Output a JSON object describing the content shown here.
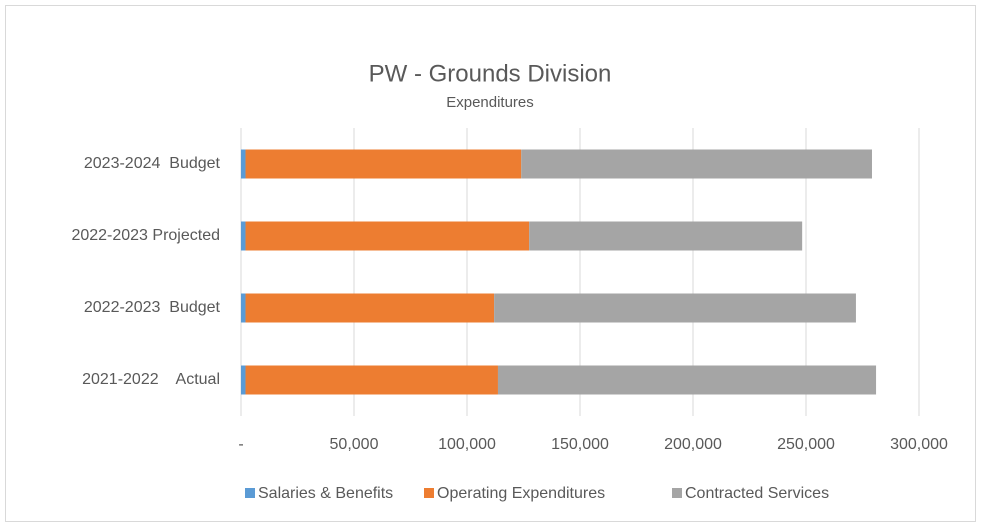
{
  "chart_data": {
    "type": "stacked_barh",
    "title": "PW - Grounds Division",
    "subtitle": "Expenditures",
    "categories": [
      "2021-2022    Actual",
      "2022-2023  Budget",
      "2022-2023 Projected",
      "2023-2024  Budget"
    ],
    "series": [
      {
        "name": "Salaries & Benefits",
        "color": "#5b9bd5",
        "values": [
          2000,
          2000,
          2000,
          2000
        ]
      },
      {
        "name": "Operating Expenditures",
        "color": "#ed7d31",
        "values": [
          111700,
          110000,
          125500,
          122000
        ]
      },
      {
        "name": "Contracted Services",
        "color": "#a5a5a5",
        "values": [
          167300,
          160100,
          120800,
          155200
        ]
      }
    ],
    "xlim": [
      0,
      300000
    ],
    "xticks": [
      {
        "value": 0,
        "label": "-"
      },
      {
        "value": 50000,
        "label": "50,000"
      },
      {
        "value": 100000,
        "label": "100,000"
      },
      {
        "value": 150000,
        "label": "150,000"
      },
      {
        "value": 200000,
        "label": "200,000"
      },
      {
        "value": 250000,
        "label": "250,000"
      },
      {
        "value": 300000,
        "label": "300,000"
      }
    ],
    "grid": true,
    "legend": "bottom"
  }
}
